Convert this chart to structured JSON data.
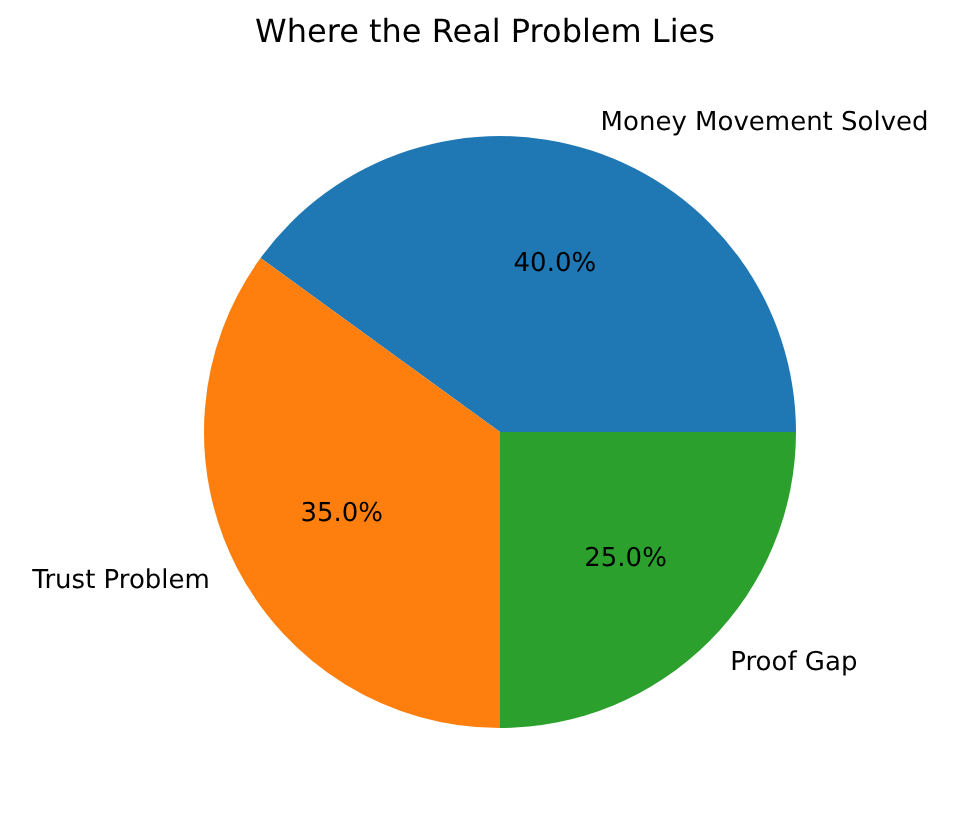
{
  "chart_data": {
    "type": "pie",
    "title": "Where the Real Problem Lies",
    "categories": [
      "Money Movement Solved",
      "Trust Problem",
      "Proof Gap"
    ],
    "values": [
      40,
      35,
      25
    ],
    "colors": [
      "#1f77b4",
      "#ff7f0e",
      "#2ca02c"
    ],
    "value_labels": [
      "40.0%",
      "35.0%",
      "25.0%"
    ],
    "legend": false
  }
}
